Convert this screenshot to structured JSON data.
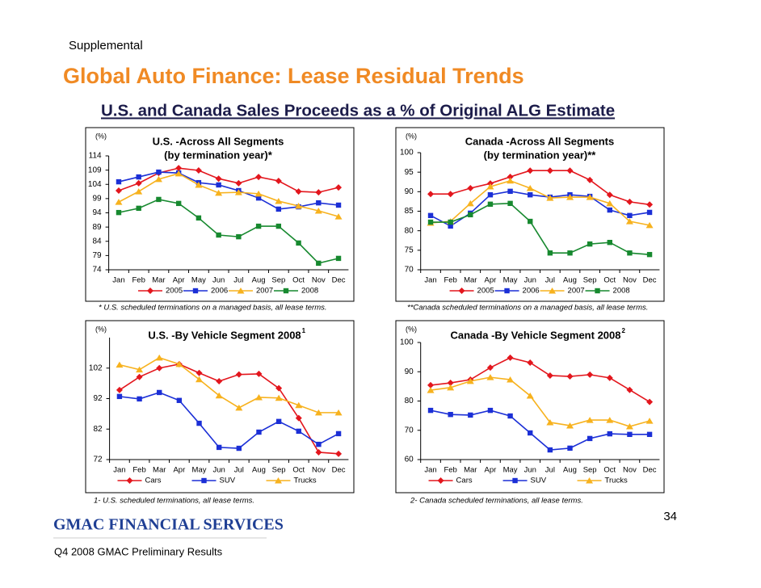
{
  "header": {
    "section": "Supplemental",
    "title": "Global Auto Finance: Lease Residual Trends",
    "subtitle": "U.S. and Canada Sales Proceeds as a % of Original ALG Estimate"
  },
  "chart_data": [
    {
      "type": "line",
      "title": "U.S. -Across All Segments",
      "subtitle": "(by termination year)*",
      "ylabel": "(%)",
      "note": "* U.S. scheduled terminations on a managed basis, all lease terms.",
      "categories": [
        "Jan",
        "Feb",
        "Mar",
        "Apr",
        "May",
        "Jun",
        "Jul",
        "Aug",
        "Sep",
        "Oct",
        "Nov",
        "Dec"
      ],
      "ylim": [
        74,
        114
      ],
      "yticks": [
        74,
        79,
        84,
        89,
        94,
        99,
        104,
        109,
        114
      ],
      "series": [
        {
          "name": "2005",
          "color": "#e3161d",
          "marker": "diamond",
          "values": [
            101.8,
            104.4,
            108,
            109.7,
            108.9,
            106,
            104.4,
            106.6,
            105.2,
            101.5,
            101.2,
            102.9
          ]
        },
        {
          "name": "2006",
          "color": "#1b2fd6",
          "marker": "square",
          "values": [
            104.9,
            106.6,
            108.3,
            108,
            104.6,
            103.8,
            101.8,
            99.2,
            95.3,
            96.1,
            97.5,
            96.7
          ]
        },
        {
          "name": "2007",
          "color": "#f7b21e",
          "marker": "triangle",
          "values": [
            97.8,
            101.5,
            105.8,
            107.8,
            103.8,
            101,
            101.2,
            100.7,
            98.1,
            96.4,
            94.7,
            92.7
          ]
        },
        {
          "name": "2008",
          "color": "#17892f",
          "marker": "square",
          "values": [
            94.1,
            95.6,
            98.7,
            97.3,
            92.2,
            86.2,
            85.6,
            89.3,
            89.3,
            83.4,
            76.3,
            78
          ]
        }
      ]
    },
    {
      "type": "line",
      "title": "Canada -Across All Segments",
      "subtitle": "(by termination year)**",
      "ylabel": "(%)",
      "note": "**Canada scheduled terminations on a managed basis, all lease terms.",
      "categories": [
        "Jan",
        "Feb",
        "Mar",
        "Apr",
        "May",
        "Jun",
        "Jul",
        "Aug",
        "Sep",
        "Oct",
        "Nov",
        "Dec"
      ],
      "ylim": [
        70,
        100
      ],
      "yticks": [
        70,
        75,
        80,
        85,
        90,
        95,
        100
      ],
      "series": [
        {
          "name": "2005",
          "color": "#e3161d",
          "marker": "diamond",
          "values": [
            89.4,
            89.4,
            90.9,
            92.1,
            93.8,
            95.4,
            95.4,
            95.4,
            93,
            89.2,
            87.4,
            86.7
          ]
        },
        {
          "name": "2006",
          "color": "#1b2fd6",
          "marker": "square",
          "values": [
            83.9,
            81.2,
            84.5,
            89.2,
            90.1,
            89.2,
            88.6,
            89.2,
            88.8,
            85.3,
            83.9,
            84.7
          ]
        },
        {
          "name": "2007",
          "color": "#f7b21e",
          "marker": "triangle",
          "values": [
            82,
            82.4,
            87,
            91.3,
            92.8,
            90.9,
            88.4,
            88.6,
            88.6,
            87,
            82.4,
            81.4
          ]
        },
        {
          "name": "2008",
          "color": "#17892f",
          "marker": "square",
          "values": [
            82.2,
            82.2,
            84.1,
            86.8,
            87,
            82.4,
            74.3,
            74.3,
            76.6,
            77,
            74.3,
            73.9
          ]
        }
      ]
    },
    {
      "type": "line",
      "title": "U.S. -By Vehicle Segment 2008",
      "title_note": "1",
      "ylabel": "(%)",
      "note": "1- U.S. scheduled terminations, all lease terms.",
      "categories": [
        "Jan",
        "Feb",
        "Mar",
        "Apr",
        "May",
        "Jun",
        "Jul",
        "Aug",
        "Sep",
        "Oct",
        "Nov",
        "Dec"
      ],
      "ylim": [
        72,
        112
      ],
      "yticks": [
        72,
        82,
        92,
        102
      ],
      "series": [
        {
          "name": "Cars",
          "color": "#e3161d",
          "marker": "diamond",
          "values": [
            94.8,
            99.1,
            102,
            103.3,
            100.4,
            97.7,
            99.9,
            100.1,
            95.4,
            85.6,
            74.4,
            73.9
          ]
        },
        {
          "name": "SUV",
          "color": "#1b2fd6",
          "marker": "square",
          "values": [
            92.7,
            91.9,
            94,
            91.4,
            83.9,
            76,
            75.7,
            81,
            84.5,
            81.3,
            77,
            80.5
          ]
        },
        {
          "name": "Trucks",
          "color": "#f7b21e",
          "marker": "triangle",
          "values": [
            103.1,
            101.5,
            105.4,
            103.3,
            98.3,
            93,
            89,
            92.4,
            92.2,
            89.8,
            87.4,
            87.4
          ]
        }
      ]
    },
    {
      "type": "line",
      "title": "Canada -By Vehicle Segment 2008",
      "title_note": "2",
      "ylabel": "(%)",
      "note": "2- Canada scheduled terminations, all lease terms.",
      "categories": [
        "Jan",
        "Feb",
        "Mar",
        "Apr",
        "May",
        "Jun",
        "Jul",
        "Aug",
        "Sep",
        "Oct",
        "Nov",
        "Dec"
      ],
      "ylim": [
        60,
        100
      ],
      "yticks": [
        60,
        70,
        80,
        90,
        100
      ],
      "series": [
        {
          "name": "Cars",
          "color": "#e3161d",
          "marker": "diamond",
          "values": [
            85.4,
            86.2,
            87.3,
            91.4,
            94.8,
            93.1,
            88.7,
            88.4,
            89,
            87.9,
            83.8,
            79.7
          ]
        },
        {
          "name": "SUV",
          "color": "#1b2fd6",
          "marker": "square",
          "values": [
            76.8,
            75.4,
            75.2,
            76.8,
            74.9,
            69.1,
            63.3,
            63.9,
            67.2,
            68.8,
            68.6,
            68.6
          ]
        },
        {
          "name": "Trucks",
          "color": "#f7b21e",
          "marker": "triangle",
          "values": [
            83.7,
            84.6,
            86.8,
            88.1,
            87.3,
            81.8,
            72.7,
            71.6,
            73.5,
            73.5,
            71.3,
            73.2
          ]
        }
      ]
    }
  ],
  "footer": {
    "page": "34",
    "logo": "GMAC FINANCIAL SERVICES",
    "caption": "Q4 2008 GMAC Preliminary Results"
  }
}
